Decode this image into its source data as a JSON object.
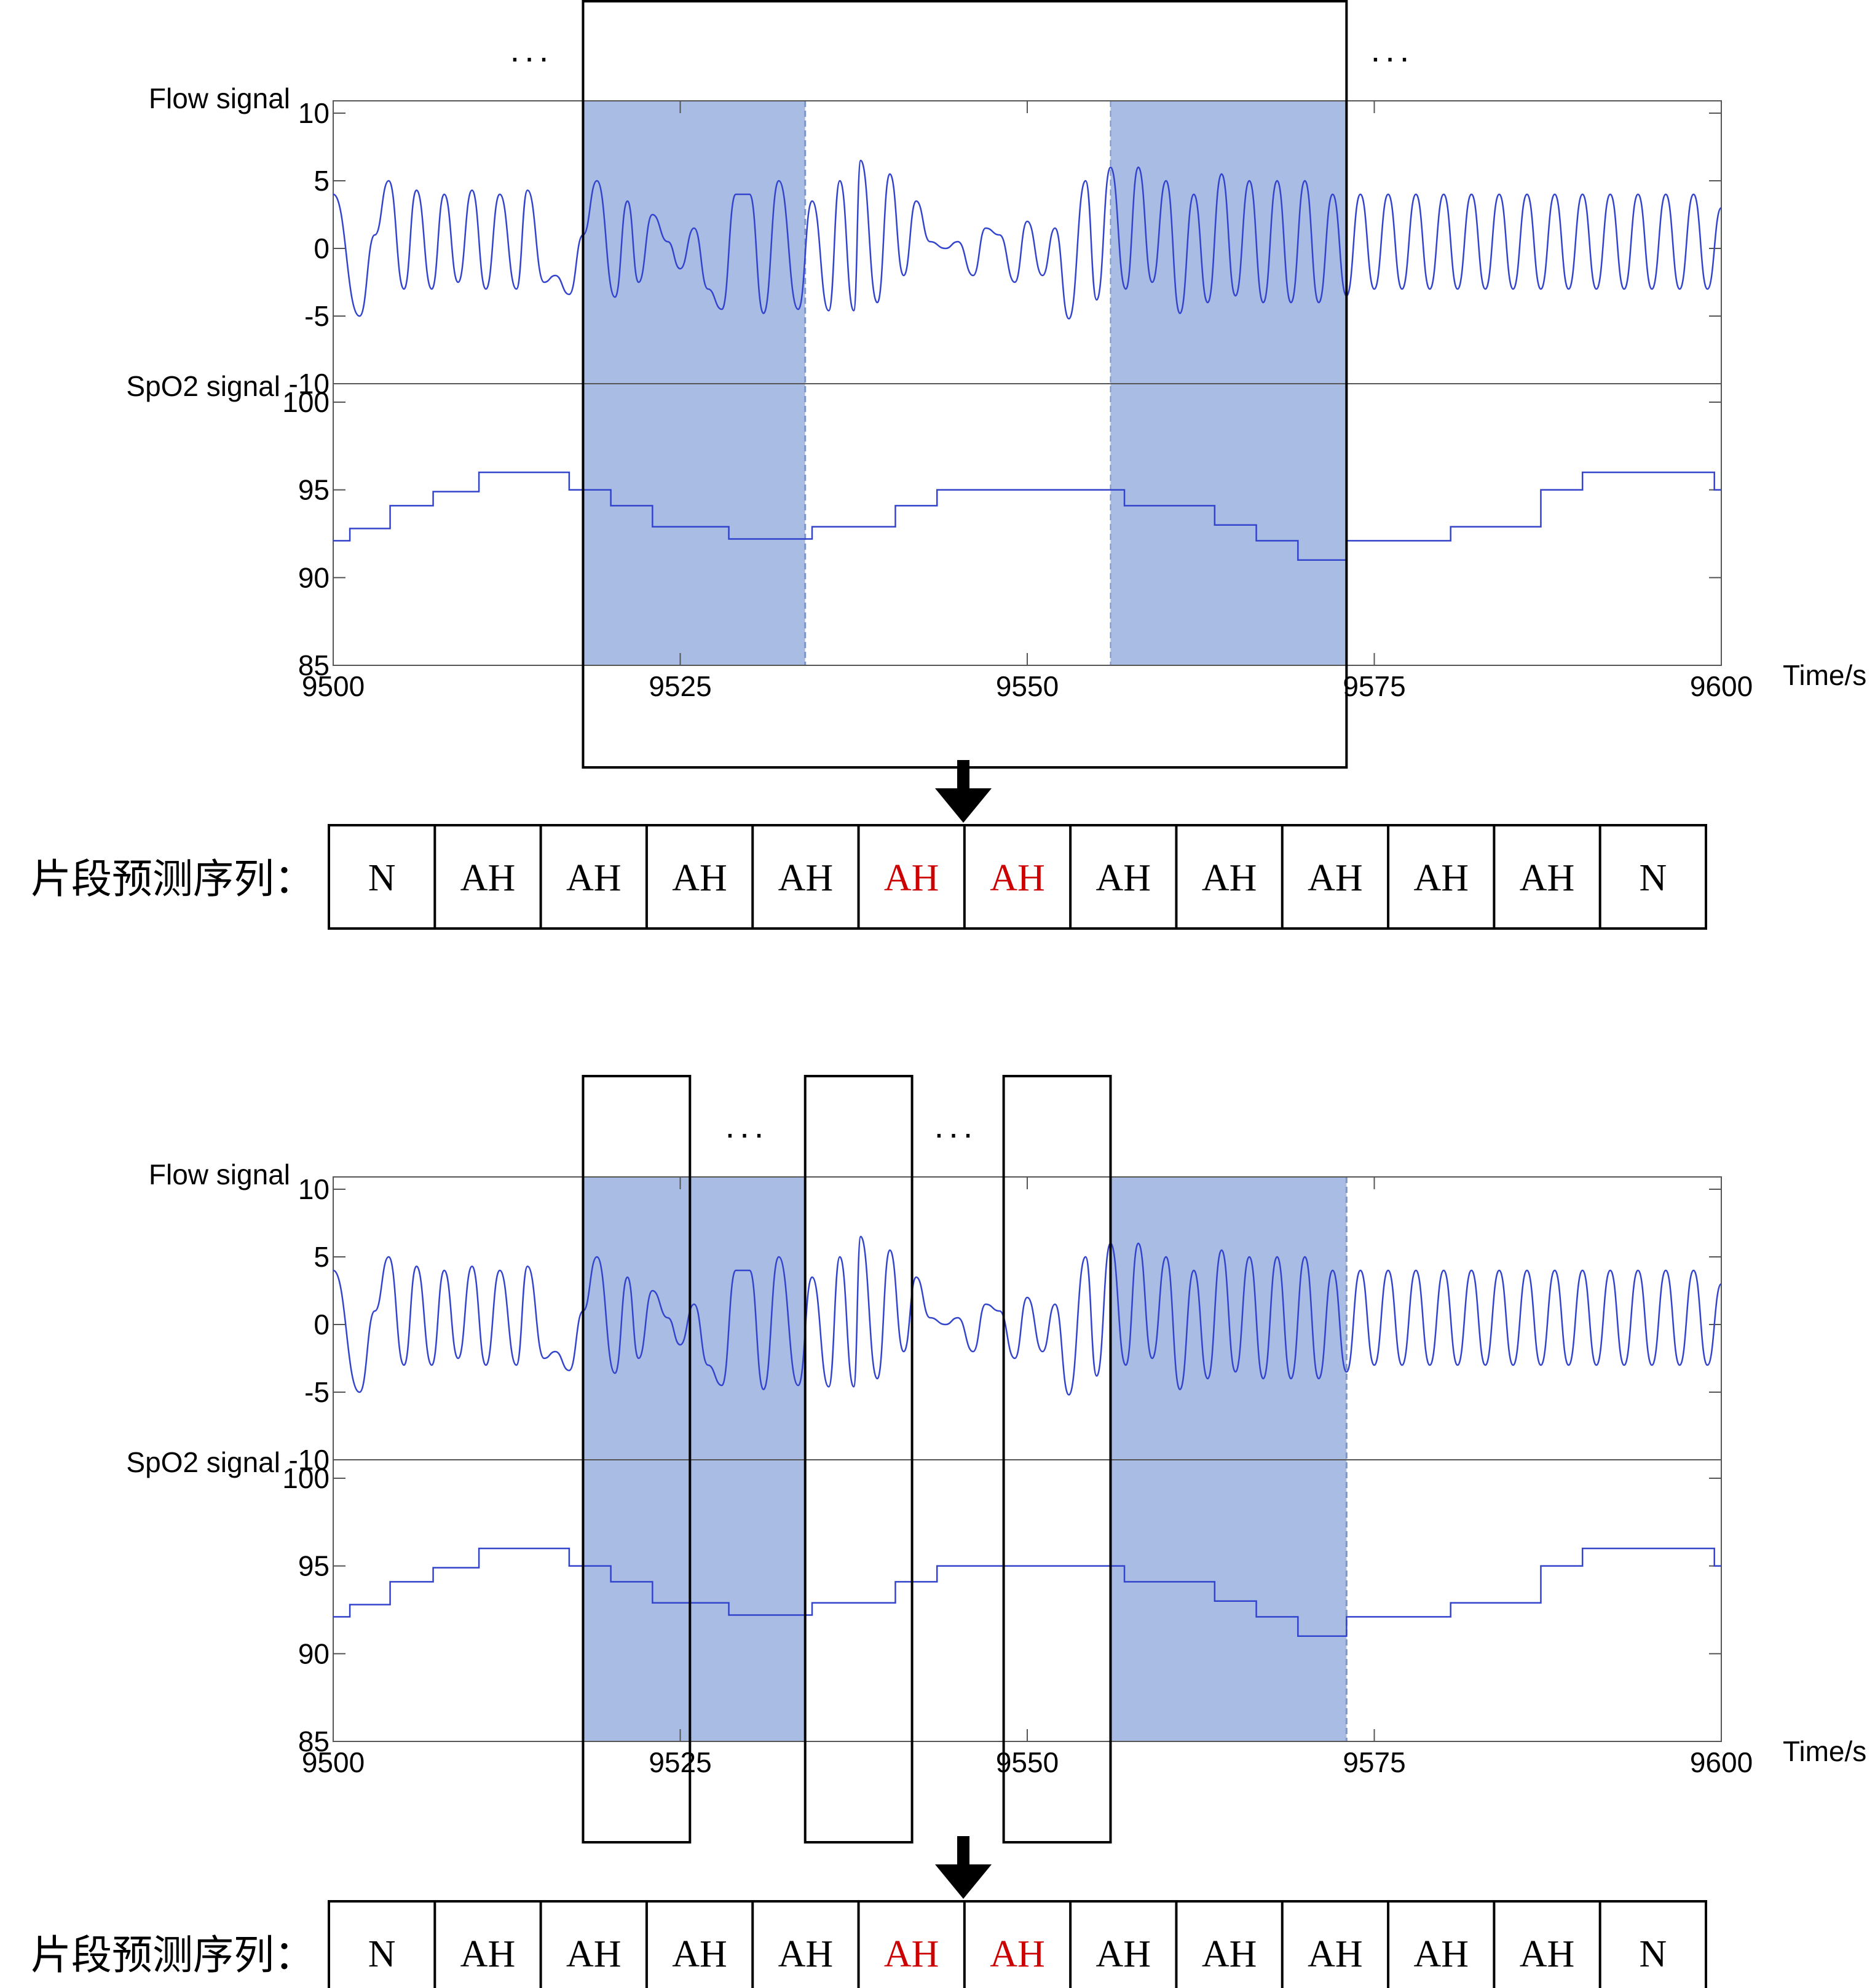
{
  "colors": {
    "signal": "#3344cc",
    "shade": "#a9bde4",
    "shade_edge": "#7f95c4",
    "axis": "#555555",
    "frame": "#000000",
    "highlight_text": "#cc0000",
    "normal_text": "#000000"
  },
  "icons": {
    "arrow": "down-arrow-icon"
  },
  "chart_data": [
    {
      "type": "line",
      "title": "",
      "panels": [
        {
          "name": "flow",
          "label": "Flow signal",
          "ylim": [
            -10,
            10
          ],
          "yticks": [
            10,
            5,
            0,
            -5,
            -10
          ],
          "ytick_labels": [
            "10",
            "5",
            "0",
            "-5",
            "-10"
          ],
          "series": [
            {
              "name": "",
              "x": [
                9500.0,
                9501.9,
                9503.0,
                9504.0,
                9505.1,
                9506.0,
                9507.1,
                9508.0,
                9509.0,
                9510.0,
                9511.0,
                9512.0,
                9513.2,
                9514.0,
                9515.2,
                9516.0,
                9517.0,
                9518.0,
                9519.0,
                9520.3,
                9521.2,
                9522.0,
                9523.0,
                9524.1,
                9525.0,
                9526.0,
                9527.0,
                9528.0,
                9529.0,
                9530.0,
                9531.0,
                9532.1,
                9533.5,
                9534.5,
                9535.7,
                9536.5,
                9537.5,
                9538.0,
                9539.2,
                9540.1,
                9541.1,
                9542.0,
                9543.0,
                9544.1,
                9545.0,
                9546.1,
                9547.0,
                9548.0,
                9549.1,
                9550.0,
                9551.1,
                9552.0,
                9553.0,
                9554.2,
                9555.0,
                9556.0,
                9557.1,
                9558.0,
                9559.0,
                9560.0,
                9561.0,
                9562.0,
                9563.0,
                9564.0,
                9565.0,
                9566.0,
                9567.0,
                9568.0,
                9569.0,
                9570.0,
                9571.0,
                9572.0,
                9573.0,
                9574.0,
                9575.0,
                9576.0,
                9577.0,
                9578.0,
                9579.0,
                9580.0,
                9581.0,
                9582.0,
                9583.0,
                9584.0,
                9585.0,
                9586.0,
                9587.0,
                9588.0,
                9589.0,
                9590.0,
                9591.0,
                9592.0,
                9593.0,
                9594.0,
                9595.0,
                9596.0,
                9597.0,
                9598.0,
                9599.0,
                9600.0
              ],
              "y": [
                4.0,
                -5.0,
                1.0,
                5.0,
                -3.0,
                4.3,
                -3.0,
                4.0,
                -2.5,
                4.3,
                -3.0,
                4.0,
                -3.0,
                4.3,
                -2.5,
                -2.0,
                -3.4,
                1.0,
                5.0,
                -3.6,
                3.5,
                -2.5,
                2.5,
                0.5,
                -1.5,
                1.5,
                -3.0,
                -4.5,
                4.0,
                4.0,
                -4.8,
                5.0,
                -4.5,
                3.5,
                -4.6,
                5.0,
                -4.6,
                6.5,
                -4.0,
                5.5,
                -2.0,
                3.5,
                0.5,
                0.0,
                0.5,
                -2.0,
                1.5,
                1.0,
                -2.5,
                2.0,
                -2.0,
                1.5,
                -5.2,
                5.0,
                -3.8,
                6.0,
                -3.0,
                6.0,
                -2.5,
                5.0,
                -4.8,
                4.0,
                -4.0,
                5.5,
                -3.5,
                5.0,
                -4.0,
                5.0,
                -4.0,
                5.0,
                -4.0,
                4.0,
                -3.5,
                4.0,
                -3.0,
                4.0,
                -3.0,
                4.0,
                -3.0,
                4.0,
                -3.0,
                4.0,
                -3.0,
                4.0,
                -3.0,
                4.0,
                -3.0,
                4.0,
                -3.0,
                4.0,
                -3.0,
                4.0,
                -3.0,
                4.0,
                -3.0,
                4.0,
                -3.0,
                4.0,
                -3.0,
                3.0
              ]
            }
          ]
        },
        {
          "name": "spo2",
          "label": "SpO2 signal",
          "ylim": [
            85,
            100
          ],
          "yticks": [
            100,
            95,
            90,
            85
          ],
          "ytick_labels": [
            "100",
            "95",
            "90",
            "85"
          ],
          "series": [
            {
              "name": "",
              "steps": [
                [
                  9500.0,
                  92.1
                ],
                [
                  9501.2,
                  92.8
                ],
                [
                  9504.1,
                  94.1
                ],
                [
                  9507.2,
                  94.9
                ],
                [
                  9510.5,
                  96.0
                ],
                [
                  9517.0,
                  95.0
                ],
                [
                  9520.0,
                  94.1
                ],
                [
                  9523.0,
                  92.9
                ],
                [
                  9528.5,
                  92.2
                ],
                [
                  9534.5,
                  92.9
                ],
                [
                  9540.5,
                  94.1
                ],
                [
                  9543.5,
                  95.0
                ],
                [
                  9553.0,
                  95.0
                ],
                [
                  9557.0,
                  94.1
                ],
                [
                  9563.5,
                  93.0
                ],
                [
                  9566.5,
                  92.1
                ],
                [
                  9569.5,
                  91.0
                ],
                [
                  9573.0,
                  92.1
                ],
                [
                  9580.5,
                  92.9
                ],
                [
                  9587.0,
                  95.0
                ],
                [
                  9590.0,
                  96.0
                ],
                [
                  9599.5,
                  95.0
                ]
              ]
            }
          ]
        }
      ],
      "x_axis": {
        "label": "Time/s",
        "xlim": [
          9500,
          9600
        ],
        "ticks": [
          9500,
          9525,
          9550,
          9575,
          9600
        ],
        "tick_labels": [
          "9500",
          "9525",
          "9550",
          "9575",
          "9600"
        ]
      },
      "shaded_regions": [
        [
          9518,
          9534
        ],
        [
          9556,
          9573
        ]
      ],
      "windows": [
        [
          9518,
          9573
        ]
      ],
      "ellipses": [
        "...",
        "..."
      ],
      "sequence": {
        "label": "片段预测序列：",
        "items": [
          "N",
          "AH",
          "AH",
          "AH",
          "AH",
          "AH",
          "AH",
          "AH",
          "AH",
          "AH",
          "AH",
          "AH",
          "N"
        ],
        "highlighted": [
          5,
          6
        ]
      }
    },
    {
      "type": "line",
      "title": "",
      "panels_same_as_first": true,
      "x_axis": {
        "label": "Time/s",
        "xlim": [
          9500,
          9600
        ],
        "ticks": [
          9500,
          9525,
          9550,
          9575,
          9600
        ],
        "tick_labels": [
          "9500",
          "9525",
          "9550",
          "9575",
          "9600"
        ]
      },
      "shaded_regions": [
        [
          9518,
          9534
        ],
        [
          9556,
          9573
        ]
      ],
      "windows": [
        [
          9518,
          9525.7
        ],
        [
          9534,
          9541.7
        ],
        [
          9548.3,
          9556
        ]
      ],
      "ellipses": [
        "...",
        "..."
      ],
      "sequence": {
        "label": "片段预测序列：",
        "items": [
          "N",
          "AH",
          "AH",
          "AH",
          "AH",
          "AH",
          "AH",
          "AH",
          "AH",
          "AH",
          "AH",
          "AH",
          "N"
        ],
        "highlighted": [
          5,
          6
        ]
      }
    }
  ]
}
